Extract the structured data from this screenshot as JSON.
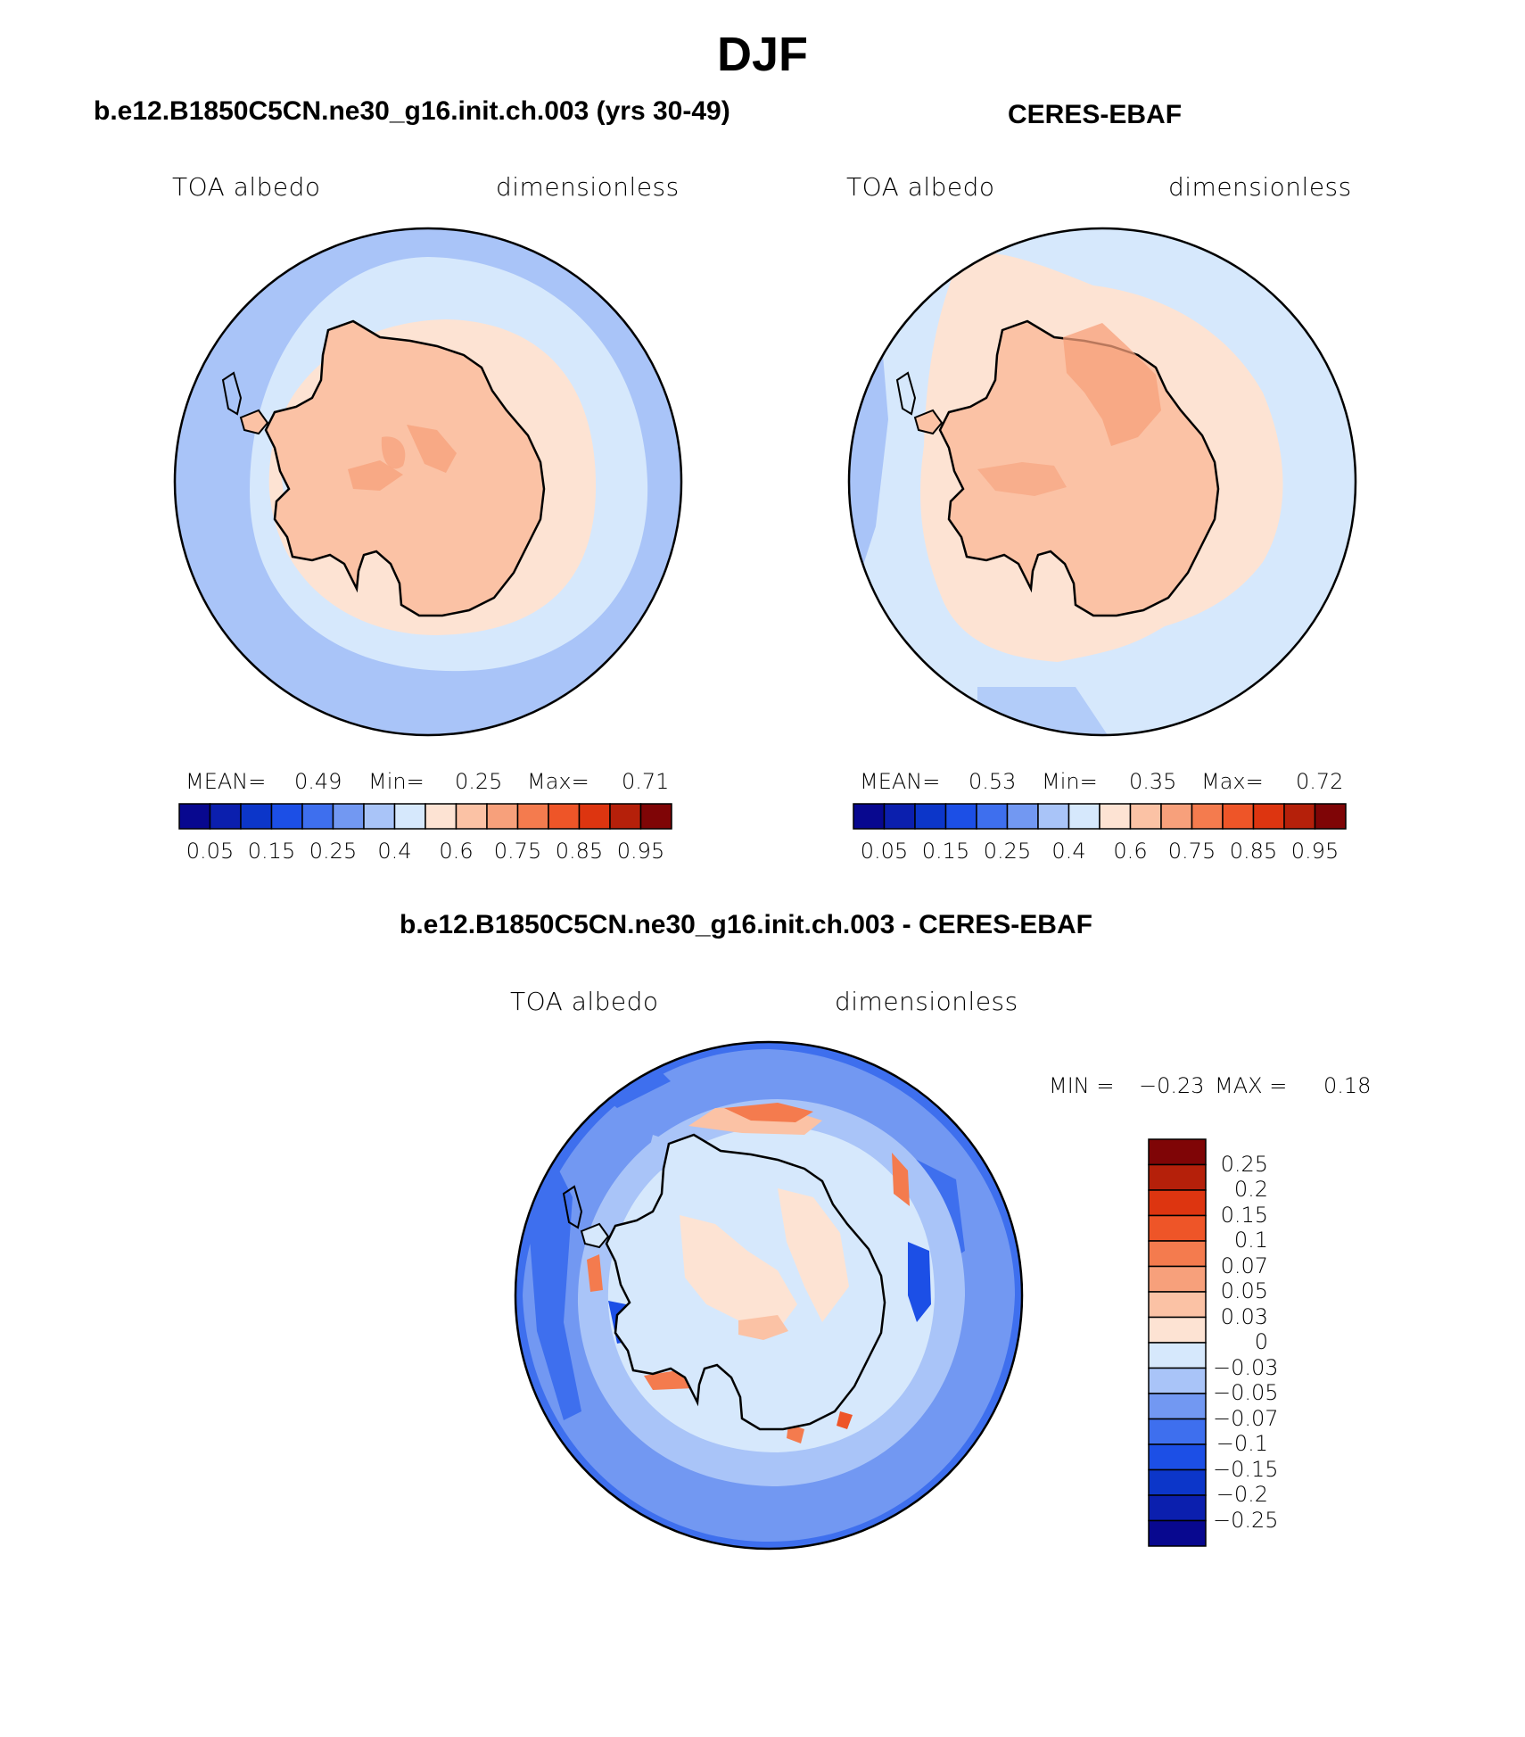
{
  "title": "DJF",
  "panels": [
    {
      "id": "model",
      "title": "b.e12.B1850C5CN.ne30_g16.init.ch.003 (yrs 30-49)",
      "left_label": "TOA albedo",
      "right_label": "dimensionless",
      "stats": {
        "mean_label": "MEAN=",
        "mean": "0.49",
        "min_label": "Min=",
        "min": "0.25",
        "max_label": "Max=",
        "max": "0.71"
      }
    },
    {
      "id": "obs",
      "title": "CERES-EBAF",
      "left_label": "TOA albedo",
      "right_label": "dimensionless",
      "stats": {
        "mean_label": "MEAN=",
        "mean": "0.53",
        "min_label": "Min=",
        "min": "0.35",
        "max_label": "Max=",
        "max": "0.72"
      }
    },
    {
      "id": "diff",
      "title": "b.e12.B1850C5CN.ne30_g16.init.ch.003 - CERES-EBAF",
      "left_label": "TOA albedo",
      "right_label": "dimensionless",
      "stats": {
        "min_label": "MIN =",
        "min": "−0.23",
        "max_label": "MAX =",
        "max": "0.18"
      }
    }
  ],
  "abs_colorbar": {
    "ticks": [
      "0.05",
      "0.15",
      "0.25",
      "0.4",
      "0.6",
      "0.75",
      "0.85",
      "0.95"
    ],
    "colors": [
      "#08088f",
      "#0b1fae",
      "#0c36c9",
      "#1c4fe6",
      "#3e6fee",
      "#7298f2",
      "#a9c4f8",
      "#d6e8fc",
      "#fde3d3",
      "#fbc2a5",
      "#f7a07b",
      "#f47b4e",
      "#ee5528",
      "#dd3510",
      "#b5200a",
      "#7f0506"
    ]
  },
  "diff_colorbar": {
    "labels": [
      "0.25",
      "0.2",
      "0.15",
      "0.1",
      "0.07",
      "0.05",
      "0.03",
      "0",
      "−0.03",
      "−0.05",
      "−0.07",
      "−0.1",
      "−0.15",
      "−0.2",
      "−0.25"
    ],
    "colors": [
      "#7f0506",
      "#b5200a",
      "#dd3510",
      "#ee5528",
      "#f47b4e",
      "#f7a07b",
      "#fbc2a5",
      "#fde3d3",
      "#d6e8fc",
      "#a9c4f8",
      "#7298f2",
      "#3e6fee",
      "#1c4fe6",
      "#0c36c9",
      "#0b1fae",
      "#08088f"
    ]
  }
}
